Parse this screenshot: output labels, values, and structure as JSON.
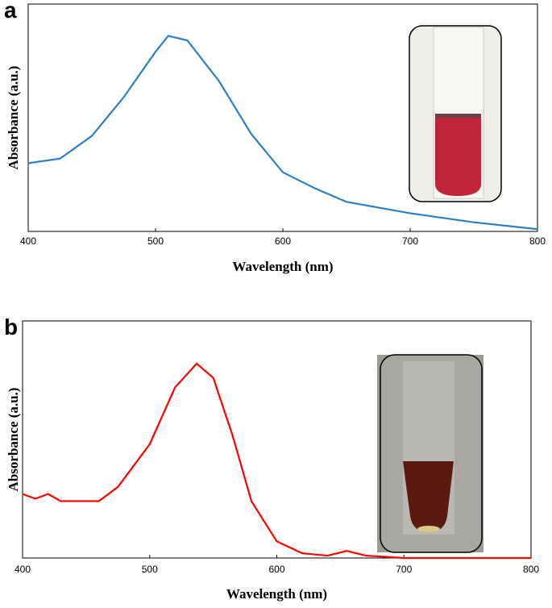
{
  "chart_data": [
    {
      "type": "line",
      "label": "a",
      "xlabel": "Wavelength (nm)",
      "ylabel": "Absorbance (a.u.)",
      "x": [
        400,
        425,
        450,
        475,
        500,
        510,
        525,
        550,
        575,
        600,
        625,
        650,
        660,
        700,
        750,
        800
      ],
      "values": [
        0.3,
        0.32,
        0.42,
        0.59,
        0.79,
        0.86,
        0.84,
        0.66,
        0.43,
        0.26,
        0.19,
        0.13,
        0.12,
        0.08,
        0.04,
        0.01
      ],
      "color": "#2a7fc8",
      "xlim": [
        400,
        800
      ],
      "xticks": [
        400,
        500,
        600,
        700,
        800
      ],
      "ylim": [
        0,
        1
      ]
    },
    {
      "type": "line",
      "label": "b",
      "xlabel": "Wavelength (nm)",
      "ylabel": "Absorbance (a.u.)",
      "x": [
        400,
        410,
        420,
        430,
        440,
        460,
        475,
        500,
        520,
        537,
        550,
        565,
        580,
        600,
        620,
        640,
        655,
        670,
        700,
        800
      ],
      "values": [
        0.27,
        0.25,
        0.27,
        0.24,
        0.24,
        0.24,
        0.3,
        0.48,
        0.72,
        0.82,
        0.76,
        0.52,
        0.24,
        0.07,
        0.02,
        0.01,
        0.03,
        0.01,
        0.0,
        0.0
      ],
      "color": "#ff0000",
      "xlim": [
        400,
        800
      ],
      "xticks": [
        400,
        500,
        600,
        700,
        800
      ],
      "ylim": [
        0,
        1
      ]
    }
  ]
}
